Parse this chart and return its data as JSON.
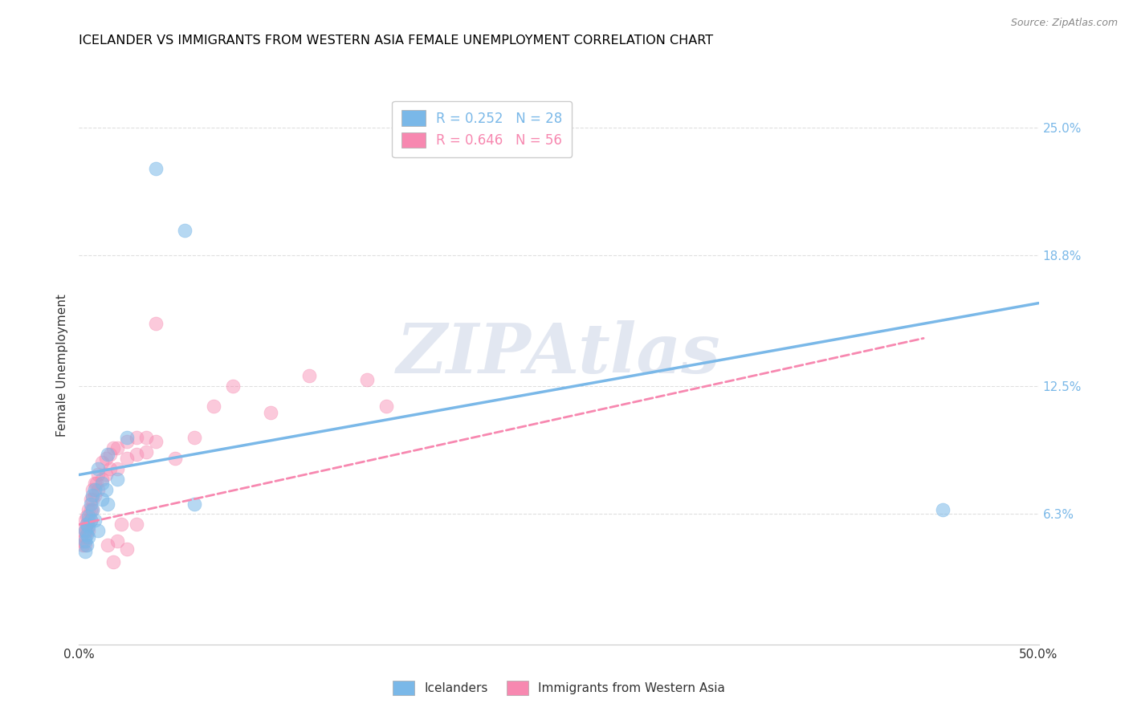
{
  "title": "ICELANDER VS IMMIGRANTS FROM WESTERN ASIA FEMALE UNEMPLOYMENT CORRELATION CHART",
  "source": "Source: ZipAtlas.com",
  "ylabel": "Female Unemployment",
  "xlim": [
    0,
    0.5
  ],
  "ylim": [
    0.0,
    0.27
  ],
  "right_yticks": [
    0.063,
    0.125,
    0.188,
    0.25
  ],
  "right_yticklabels": [
    "6.3%",
    "12.5%",
    "18.8%",
    "25.0%"
  ],
  "legend_label1": "Icelanders",
  "legend_label2": "Immigrants from Western Asia",
  "blue_color": "#7ab8e8",
  "pink_color": "#f788b0",
  "blue_scatter": [
    [
      0.003,
      0.055
    ],
    [
      0.003,
      0.05
    ],
    [
      0.003,
      0.045
    ],
    [
      0.004,
      0.058
    ],
    [
      0.004,
      0.053
    ],
    [
      0.004,
      0.048
    ],
    [
      0.005,
      0.062
    ],
    [
      0.005,
      0.057
    ],
    [
      0.005,
      0.052
    ],
    [
      0.006,
      0.068
    ],
    [
      0.006,
      0.06
    ],
    [
      0.007,
      0.072
    ],
    [
      0.007,
      0.065
    ],
    [
      0.008,
      0.075
    ],
    [
      0.008,
      0.06
    ],
    [
      0.01,
      0.085
    ],
    [
      0.01,
      0.055
    ],
    [
      0.012,
      0.078
    ],
    [
      0.012,
      0.07
    ],
    [
      0.014,
      0.075
    ],
    [
      0.015,
      0.092
    ],
    [
      0.015,
      0.068
    ],
    [
      0.02,
      0.08
    ],
    [
      0.025,
      0.1
    ],
    [
      0.04,
      0.23
    ],
    [
      0.055,
      0.2
    ],
    [
      0.06,
      0.068
    ],
    [
      0.45,
      0.065
    ]
  ],
  "pink_scatter": [
    [
      0.002,
      0.055
    ],
    [
      0.002,
      0.05
    ],
    [
      0.002,
      0.048
    ],
    [
      0.003,
      0.06
    ],
    [
      0.003,
      0.055
    ],
    [
      0.003,
      0.052
    ],
    [
      0.003,
      0.048
    ],
    [
      0.004,
      0.062
    ],
    [
      0.004,
      0.058
    ],
    [
      0.004,
      0.055
    ],
    [
      0.005,
      0.065
    ],
    [
      0.005,
      0.06
    ],
    [
      0.005,
      0.055
    ],
    [
      0.006,
      0.07
    ],
    [
      0.006,
      0.065
    ],
    [
      0.006,
      0.06
    ],
    [
      0.007,
      0.075
    ],
    [
      0.007,
      0.07
    ],
    [
      0.007,
      0.065
    ],
    [
      0.008,
      0.078
    ],
    [
      0.008,
      0.072
    ],
    [
      0.009,
      0.078
    ],
    [
      0.01,
      0.082
    ],
    [
      0.01,
      0.075
    ],
    [
      0.012,
      0.088
    ],
    [
      0.012,
      0.08
    ],
    [
      0.014,
      0.09
    ],
    [
      0.014,
      0.082
    ],
    [
      0.016,
      0.092
    ],
    [
      0.016,
      0.085
    ],
    [
      0.018,
      0.095
    ],
    [
      0.02,
      0.095
    ],
    [
      0.02,
      0.085
    ],
    [
      0.025,
      0.098
    ],
    [
      0.025,
      0.09
    ],
    [
      0.03,
      0.1
    ],
    [
      0.03,
      0.092
    ],
    [
      0.035,
      0.1
    ],
    [
      0.035,
      0.093
    ],
    [
      0.04,
      0.098
    ],
    [
      0.04,
      0.155
    ],
    [
      0.05,
      0.09
    ],
    [
      0.06,
      0.1
    ],
    [
      0.07,
      0.115
    ],
    [
      0.08,
      0.125
    ],
    [
      0.1,
      0.112
    ],
    [
      0.12,
      0.13
    ],
    [
      0.15,
      0.128
    ],
    [
      0.16,
      0.115
    ],
    [
      0.02,
      0.05
    ],
    [
      0.025,
      0.046
    ],
    [
      0.015,
      0.048
    ],
    [
      0.018,
      0.04
    ],
    [
      0.022,
      0.058
    ],
    [
      0.03,
      0.058
    ]
  ],
  "blue_line_x": [
    0.0,
    0.5
  ],
  "blue_line_y": [
    0.082,
    0.165
  ],
  "pink_line_x": [
    0.0,
    0.44
  ],
  "pink_line_y": [
    0.058,
    0.148
  ],
  "watermark_text": "ZIPAtlas",
  "background_color": "#ffffff",
  "grid_color": "#d8d8d8"
}
